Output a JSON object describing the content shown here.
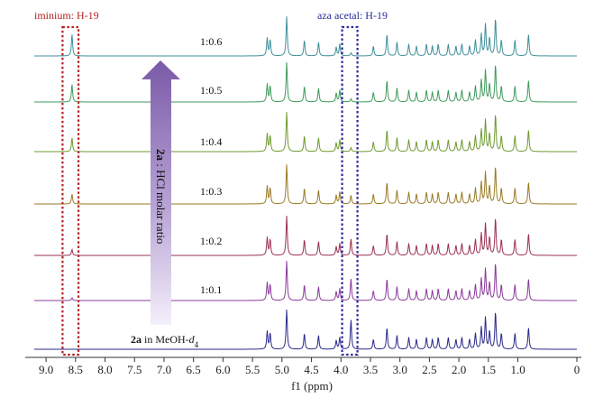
{
  "chart_data": {
    "type": "line",
    "title": "",
    "xlabel": "f1 (ppm)",
    "xlim": [
      9.2,
      0.0
    ],
    "x_ticks": [
      "9.0",
      "8.5",
      "8.0",
      "7.5",
      "7.0",
      "6.5",
      "6.0",
      "5.5",
      "5.0",
      "4.5",
      "4.0",
      "3.5",
      "3.0",
      "2.5",
      "2.0",
      "1.5",
      "1.0",
      "0"
    ],
    "x_tick_values": [
      9.0,
      8.5,
      8.0,
      7.5,
      7.0,
      6.5,
      6.0,
      5.5,
      5.0,
      4.5,
      4.0,
      3.5,
      3.0,
      2.5,
      2.0,
      1.5,
      1.0,
      0.0
    ],
    "highlights": [
      {
        "label": "iminium: H-19",
        "ppm_range": [
          8.45,
          8.72
        ],
        "color": "#b22222"
      },
      {
        "label": "aza acetal: H-19",
        "ppm_range": [
          3.72,
          3.98
        ],
        "color": "#2a2a9a"
      }
    ],
    "arrow_label": {
      "bold": "2a",
      "rest": " : HCl molar ratio"
    },
    "bottom_label": {
      "bold": "2a",
      "mid": " in MeOH-",
      "ital": "d",
      "sub": "4"
    },
    "series": [
      {
        "name": "1:0.6",
        "color": "#3f8f9a",
        "iminium": 0.55,
        "aza": 0.08
      },
      {
        "name": "1:0.5",
        "color": "#3f9a5a",
        "iminium": 0.45,
        "aza": 0.08
      },
      {
        "name": "1:0.4",
        "color": "#6e9a2f",
        "iminium": 0.35,
        "aza": 0.1
      },
      {
        "name": "1:0.3",
        "color": "#9a7a25",
        "iminium": 0.25,
        "aza": 0.22
      },
      {
        "name": "1:0.2",
        "color": "#9a3050",
        "iminium": 0.15,
        "aza": 0.42
      },
      {
        "name": "1:0.1",
        "color": "#8a3a9a",
        "iminium": 0.07,
        "aza": 0.55
      },
      {
        "name": "2a in MeOH-d4",
        "color": "#2a2a8a",
        "iminium": 0.0,
        "aza": 0.75
      }
    ],
    "peaks": [
      [
        5.25,
        0.45
      ],
      [
        5.2,
        0.4
      ],
      [
        4.92,
        1.0
      ],
      [
        4.62,
        0.4
      ],
      [
        4.38,
        0.35
      ],
      [
        4.02,
        0.3
      ],
      [
        4.08,
        0.22
      ],
      [
        3.45,
        0.25
      ],
      [
        3.22,
        0.55
      ],
      [
        3.05,
        0.35
      ],
      [
        2.85,
        0.3
      ],
      [
        2.72,
        0.25
      ],
      [
        2.55,
        0.3
      ],
      [
        2.45,
        0.25
      ],
      [
        2.35,
        0.3
      ],
      [
        2.18,
        0.3
      ],
      [
        2.05,
        0.25
      ],
      [
        1.95,
        0.3
      ],
      [
        1.82,
        0.25
      ],
      [
        1.72,
        0.4
      ],
      [
        1.62,
        0.55
      ],
      [
        1.55,
        0.8
      ],
      [
        1.48,
        0.45
      ],
      [
        1.38,
        0.95
      ],
      [
        1.28,
        0.4
      ],
      [
        1.05,
        0.4
      ],
      [
        0.82,
        0.55
      ]
    ]
  }
}
